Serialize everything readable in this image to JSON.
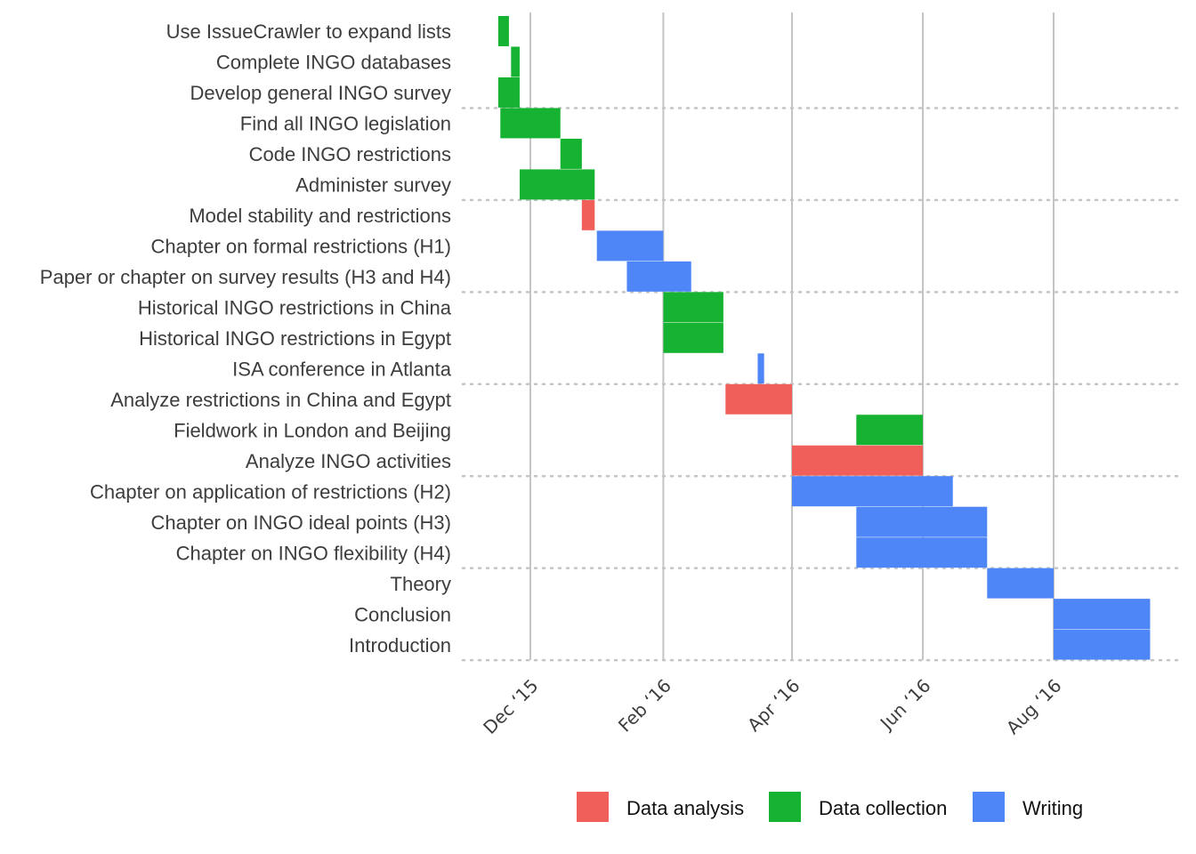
{
  "chart_data": {
    "type": "gantt",
    "x_axis": {
      "ticks": [
        {
          "date": "2015-12-01",
          "label": "Dec ‘15"
        },
        {
          "date": "2016-02-01",
          "label": "Feb ‘16"
        },
        {
          "date": "2016-04-01",
          "label": "Apr ‘16"
        },
        {
          "date": "2016-06-01",
          "label": "Jun ‘16"
        },
        {
          "date": "2016-08-01",
          "label": "Aug ‘16"
        }
      ],
      "range": [
        "2015-11-15",
        "2016-10-01"
      ]
    },
    "categories": [
      {
        "name": "Data analysis",
        "color": "#f15f5b"
      },
      {
        "name": "Data collection",
        "color": "#16b232"
      },
      {
        "name": "Writing",
        "color": "#4f86f7"
      }
    ],
    "tasks": [
      {
        "task": "Use IssueCrawler to expand lists",
        "type": "Data collection",
        "start": "2015-11-16",
        "end": "2015-11-21"
      },
      {
        "task": "Complete INGO databases",
        "type": "Data collection",
        "start": "2015-11-22",
        "end": "2015-11-26"
      },
      {
        "task": "Develop general INGO survey",
        "type": "Data collection",
        "start": "2015-11-16",
        "end": "2015-11-26"
      },
      {
        "task": "Find all INGO legislation",
        "type": "Data collection",
        "start": "2015-11-17",
        "end": "2015-12-15"
      },
      {
        "task": "Code INGO restrictions",
        "type": "Data collection",
        "start": "2015-12-15",
        "end": "2015-12-25"
      },
      {
        "task": "Administer survey",
        "type": "Data collection",
        "start": "2015-11-26",
        "end": "2015-12-31"
      },
      {
        "task": "Model stability and restrictions",
        "type": "Data analysis",
        "start": "2015-12-25",
        "end": "2015-12-31"
      },
      {
        "task": "Chapter on formal restrictions (H1)",
        "type": "Writing",
        "start": "2016-01-01",
        "end": "2016-02-01"
      },
      {
        "task": "Paper or chapter on survey results (H3 and H4)",
        "type": "Writing",
        "start": "2016-01-15",
        "end": "2016-02-14"
      },
      {
        "task": "Historical INGO restrictions in China",
        "type": "Data collection",
        "start": "2016-02-01",
        "end": "2016-02-29"
      },
      {
        "task": "Historical INGO restrictions in Egypt",
        "type": "Data collection",
        "start": "2016-02-01",
        "end": "2016-02-29"
      },
      {
        "task": "ISA conference in Atlanta",
        "type": "Writing",
        "start": "2016-03-16",
        "end": "2016-03-19"
      },
      {
        "task": "Analyze restrictions in China and Egypt",
        "type": "Data analysis",
        "start": "2016-03-01",
        "end": "2016-04-01"
      },
      {
        "task": "Fieldwork in London and Beijing",
        "type": "Data collection",
        "start": "2016-05-01",
        "end": "2016-06-01"
      },
      {
        "task": "Analyze INGO activities",
        "type": "Data analysis",
        "start": "2016-04-01",
        "end": "2016-06-01"
      },
      {
        "task": "Chapter on application of restrictions (H2)",
        "type": "Writing",
        "start": "2016-04-01",
        "end": "2016-06-15"
      },
      {
        "task": "Chapter on INGO ideal points (H3)",
        "type": "Writing",
        "start": "2016-05-01",
        "end": "2016-07-01"
      },
      {
        "task": "Chapter on INGO flexibility (H4)",
        "type": "Writing",
        "start": "2016-05-01",
        "end": "2016-07-01"
      },
      {
        "task": "Theory",
        "type": "Writing",
        "start": "2016-07-01",
        "end": "2016-08-01"
      },
      {
        "task": "Conclusion",
        "type": "Writing",
        "start": "2016-08-01",
        "end": "2016-09-15"
      },
      {
        "task": "Introduction",
        "type": "Writing",
        "start": "2016-08-01",
        "end": "2016-09-15"
      }
    ],
    "group_separators_after_row": [
      3,
      6,
      9,
      12,
      15,
      18,
      21
    ],
    "grid": true,
    "legend": "bottom"
  }
}
